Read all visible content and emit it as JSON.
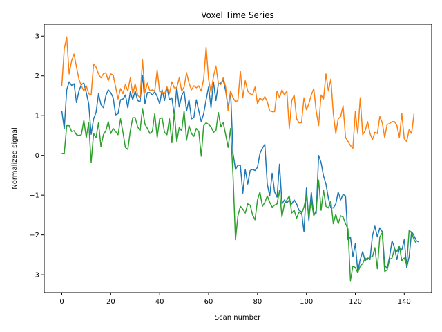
{
  "chart_data": {
    "type": "line",
    "title": "Voxel Time Series",
    "xlabel": "Scan number",
    "ylabel": "Normalized signal",
    "xlim": [
      -7.2,
      151.2
    ],
    "ylim": [
      -3.45,
      3.3
    ],
    "xticks": [
      0,
      20,
      40,
      60,
      80,
      100,
      120,
      140
    ],
    "yticks": [
      -3,
      -2,
      -1,
      0,
      1,
      2,
      3
    ],
    "xtick_labels": [
      "0",
      "20",
      "40",
      "60",
      "80",
      "100",
      "120",
      "140"
    ],
    "ytick_labels": [
      "−3",
      "−2",
      "−1",
      "0",
      "1",
      "2",
      "3"
    ],
    "grid": false,
    "series": [
      {
        "color": "#1f77b4",
        "values": [
          1.12,
          0.67,
          1.65,
          1.85,
          1.76,
          1.8,
          1.33,
          1.62,
          1.78,
          1.82,
          1.58,
          1.3,
          0.53,
          0.92,
          1.08,
          1.55,
          1.28,
          1.2,
          1.5,
          1.65,
          1.58,
          1.45,
          1.02,
          1.05,
          1.4,
          1.42,
          1.52,
          1.2,
          1.6,
          1.4,
          1.62,
          1.38,
          1.35,
          2.02,
          1.3,
          1.58,
          1.58,
          1.52,
          1.6,
          1.48,
          1.3,
          1.65,
          1.38,
          1.72,
          1.4,
          1.45,
          1.0,
          1.72,
          1.22,
          1.5,
          1.62,
          1.12,
          1.4,
          0.92,
          0.95,
          1.4,
          1.12,
          0.85,
          1.05,
          1.4,
          1.72,
          1.2,
          1.85,
          1.38,
          1.8,
          1.82,
          1.9,
          1.62,
          1.2,
          1.62,
          0.05,
          -0.35,
          -0.25,
          -0.25,
          -0.95,
          -0.35,
          -0.72,
          -0.38,
          -0.35,
          -0.38,
          -0.3,
          0.05,
          0.18,
          0.28,
          -0.72,
          -1.02,
          -0.45,
          -0.92,
          -1.05,
          -0.22,
          -1.22,
          -1.12,
          -1.2,
          -1.12,
          -1.22,
          -1.12,
          -1.22,
          -1.38,
          -1.42,
          -1.92,
          -0.82,
          -1.65,
          -0.92,
          -1.5,
          -1.45,
          0.0,
          -0.18,
          -0.52,
          -0.72,
          -1.08,
          -1.32,
          -1.32,
          -1.22,
          -0.92,
          -1.12,
          -0.98,
          -1.02,
          -2.12,
          -2.05,
          -2.55,
          -2.22,
          -2.92,
          -2.62,
          -2.42,
          -2.65,
          -2.58,
          -2.62,
          -2.02,
          -1.78,
          -2.05,
          -1.82,
          -1.92,
          -2.75,
          -2.85,
          -2.55,
          -2.15,
          -2.32,
          -2.62,
          -2.32,
          -2.38,
          -2.12,
          -2.82,
          -2.55,
          -1.92,
          -2.02,
          -2.15,
          -2.18
        ]
      },
      {
        "color": "#ff7f0e",
        "values": [
          1.75,
          2.68,
          2.98,
          2.05,
          2.38,
          2.55,
          2.22,
          1.92,
          1.75,
          1.62,
          1.75,
          1.55,
          1.52,
          2.3,
          2.22,
          2.05,
          1.95,
          2.05,
          2.08,
          1.88,
          2.05,
          2.02,
          1.72,
          1.42,
          1.68,
          1.55,
          1.78,
          1.62,
          1.95,
          1.55,
          1.8,
          1.52,
          1.45,
          2.4,
          1.58,
          1.82,
          1.62,
          1.65,
          1.62,
          2.15,
          1.6,
          1.6,
          1.55,
          1.72,
          1.55,
          1.85,
          1.7,
          1.7,
          1.95,
          1.62,
          1.72,
          2.08,
          1.82,
          1.65,
          1.75,
          1.7,
          1.75,
          1.62,
          1.92,
          2.72,
          1.92,
          1.58,
          1.98,
          2.25,
          1.82,
          1.78,
          1.95,
          1.72,
          1.12,
          1.62,
          1.45,
          1.35,
          1.38,
          2.12,
          1.45,
          1.88,
          1.62,
          1.55,
          1.52,
          1.72,
          1.3,
          1.45,
          1.38,
          1.48,
          1.35,
          1.12,
          1.1,
          1.1,
          1.62,
          1.45,
          1.65,
          1.52,
          1.62,
          0.68,
          1.38,
          1.52,
          0.92,
          0.82,
          0.82,
          1.45,
          1.15,
          1.3,
          1.52,
          1.68,
          1.12,
          0.75,
          1.52,
          1.42,
          2.05,
          1.62,
          1.92,
          1.05,
          0.55,
          0.92,
          0.98,
          1.25,
          0.45,
          0.35,
          0.25,
          0.18,
          1.1,
          0.55,
          1.45,
          0.52,
          0.62,
          0.85,
          0.55,
          0.4,
          0.58,
          0.55,
          0.98,
          0.82,
          0.45,
          0.78,
          0.8,
          0.85,
          0.85,
          0.75,
          0.45,
          1.05,
          0.42,
          0.35,
          0.65,
          0.55,
          1.05
        ]
      },
      {
        "color": "#2ca02c",
        "values": [
          0.05,
          0.05,
          0.75,
          0.75,
          0.6,
          0.62,
          0.52,
          0.5,
          0.52,
          0.88,
          0.45,
          0.82,
          -0.18,
          0.55,
          0.45,
          0.82,
          0.22,
          0.52,
          0.62,
          0.85,
          0.55,
          0.68,
          0.6,
          0.52,
          0.92,
          0.58,
          0.2,
          0.15,
          0.62,
          0.95,
          0.95,
          0.72,
          0.62,
          1.18,
          0.78,
          0.68,
          0.55,
          0.6,
          1.05,
          0.45,
          0.92,
          0.95,
          0.58,
          0.52,
          0.92,
          0.32,
          1.08,
          0.35,
          0.7,
          0.62,
          1.12,
          0.38,
          0.75,
          0.55,
          0.48,
          0.68,
          0.6,
          -0.02,
          0.75,
          0.82,
          0.78,
          0.72,
          0.58,
          0.62,
          1.08,
          0.72,
          0.82,
          0.52,
          0.2,
          0.68,
          -0.52,
          -2.12,
          -1.52,
          -1.28,
          -1.35,
          -1.45,
          -1.22,
          -1.25,
          -1.5,
          -1.62,
          -1.12,
          -0.92,
          -1.28,
          -1.18,
          -1.02,
          -1.18,
          -1.3,
          -1.25,
          -1.22,
          -0.88,
          -1.55,
          -1.22,
          -1.12,
          -1.02,
          -1.45,
          -1.38,
          -1.58,
          -1.42,
          -1.48,
          -1.3,
          -1.02,
          -1.55,
          -1.12,
          -1.52,
          -1.38,
          -0.62,
          -1.38,
          -0.88,
          -1.28,
          -1.32,
          -1.15,
          -1.72,
          -1.48,
          -1.72,
          -1.52,
          -1.55,
          -1.72,
          -1.85,
          -3.15,
          -2.78,
          -2.82,
          -2.95,
          -2.78,
          -2.72,
          -2.58,
          -2.62,
          -2.55,
          -2.55,
          -2.32,
          -2.85,
          -2.05,
          -1.95,
          -2.92,
          -2.88,
          -2.62,
          -2.58,
          -2.35,
          -2.42,
          -2.28,
          -2.65,
          -2.58,
          -2.75,
          -1.88,
          -1.95,
          -2.12,
          -2.22
        ]
      }
    ]
  }
}
